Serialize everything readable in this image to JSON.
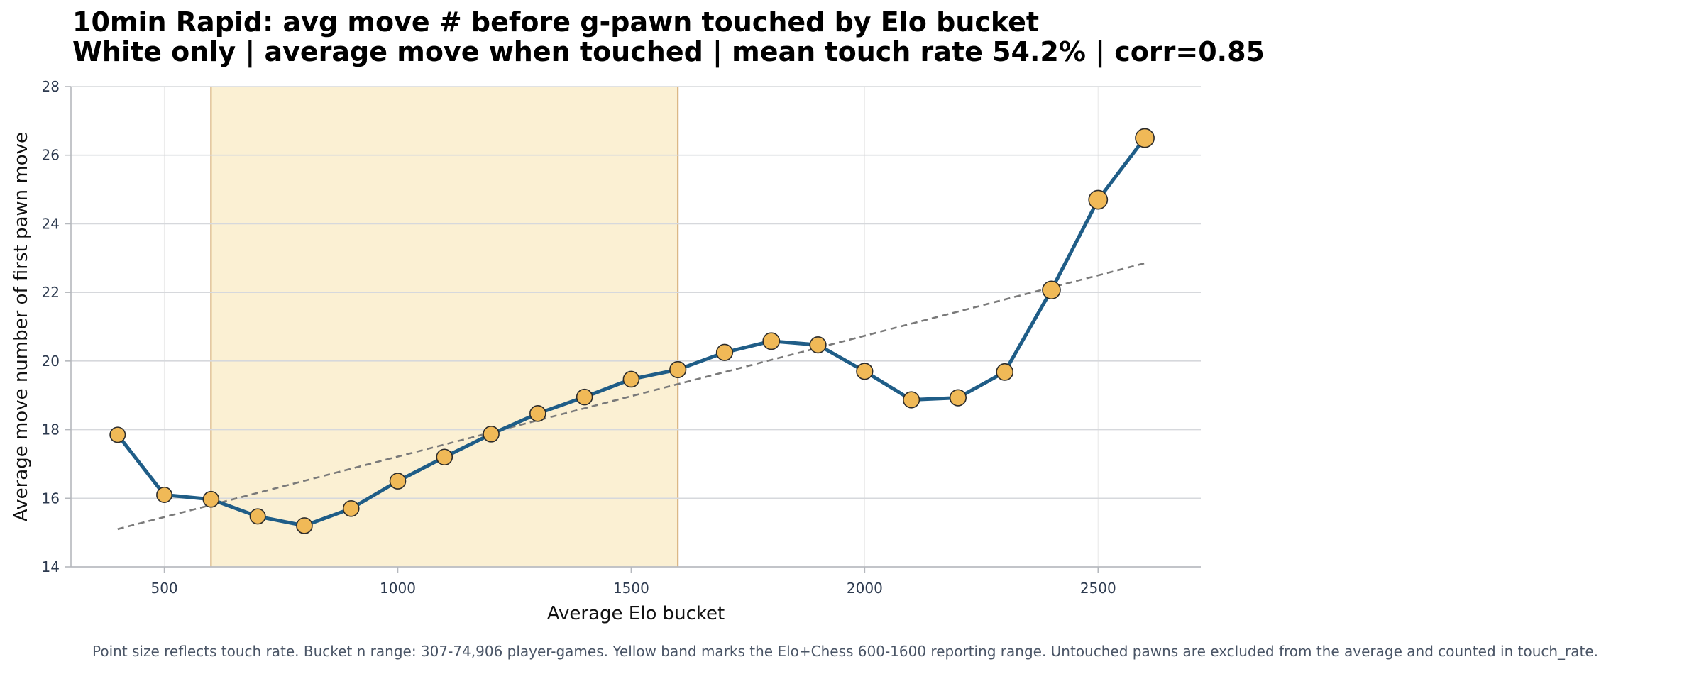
{
  "chart_data": {
    "type": "line",
    "title": "10min Rapid: avg move # before g-pawn touched by Elo bucket",
    "subtitle": "White only | average move when touched | mean touch rate 54.2% | corr=0.85",
    "xlabel": "Average Elo bucket",
    "ylabel": "Average move number of first pawn move",
    "xlim": [
      300,
      2720
    ],
    "ylim": [
      14,
      28
    ],
    "xticks": [
      500,
      1000,
      1500,
      2000,
      2500
    ],
    "yticks": [
      14,
      16,
      18,
      20,
      22,
      24,
      26,
      28
    ],
    "grid": true,
    "band": {
      "x_start": 600,
      "x_end": 1600,
      "color": "#fbf0d3"
    },
    "series": [
      {
        "x": [
          400,
          500,
          600,
          700,
          800,
          900,
          1000,
          1100,
          1200,
          1300,
          1400,
          1500,
          1600,
          1700,
          1800,
          1900,
          2000,
          2100,
          2200,
          2300,
          2400,
          2500,
          2600
        ],
        "values": [
          17.85,
          16.1,
          15.97,
          15.47,
          15.2,
          15.7,
          16.5,
          17.2,
          17.87,
          18.47,
          18.95,
          19.47,
          19.75,
          20.25,
          20.58,
          20.47,
          19.7,
          18.87,
          18.93,
          19.68,
          22.07,
          24.7,
          26.5
        ],
        "touch_rate_relative": [
          0.45,
          0.45,
          0.5,
          0.45,
          0.5,
          0.5,
          0.5,
          0.5,
          0.5,
          0.5,
          0.5,
          0.5,
          0.55,
          0.55,
          0.6,
          0.55,
          0.55,
          0.55,
          0.55,
          0.6,
          0.75,
          0.85,
          0.85
        ],
        "color": "#1f5d87",
        "marker_color": "#f0b957"
      }
    ],
    "trendline": {
      "x": [
        400,
        2600
      ],
      "y": [
        15.1,
        22.85
      ],
      "color": "#7a7a7a",
      "style": "dashed"
    }
  },
  "footnote": "Point size reflects touch rate. Bucket n range: 307-74,906 player-games. Yellow band marks the Elo+Chess 600-1600 reporting range. Untouched pawns are excluded from the average and counted in touch_rate."
}
